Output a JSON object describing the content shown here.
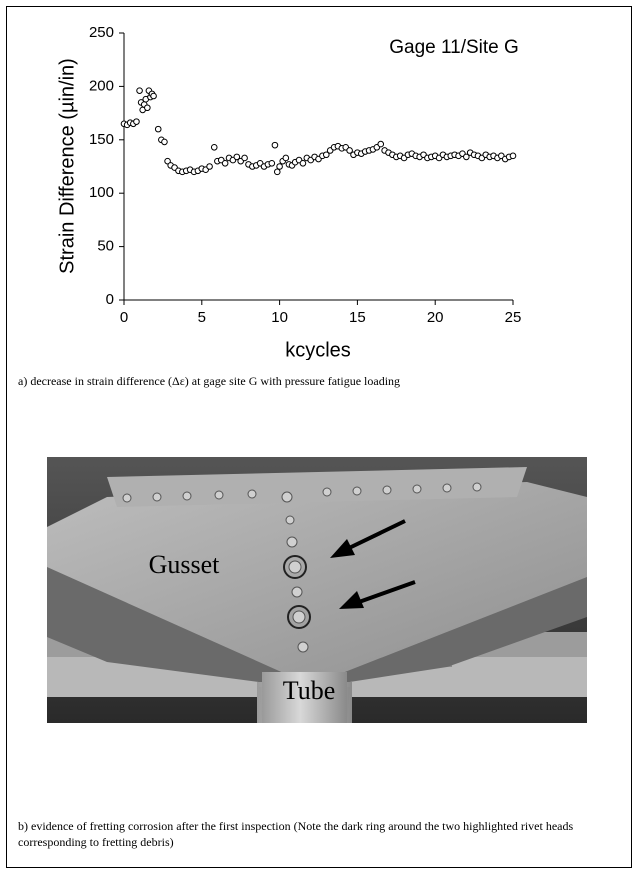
{
  "chart_data": {
    "type": "scatter",
    "annotation": "Gage 11/Site G",
    "x_label": "kcycles",
    "y_label": "Strain Difference (µin/in)",
    "xlim": [
      0,
      25
    ],
    "ylim": [
      0,
      250
    ],
    "xticks": [
      0,
      5,
      10,
      15,
      20,
      25
    ],
    "yticks": [
      0,
      50,
      100,
      150,
      200,
      250
    ],
    "color": "#000000",
    "x": [
      0,
      0.2,
      0.4,
      0.6,
      0.8,
      1.0,
      1.1,
      1.2,
      1.3,
      1.4,
      1.5,
      1.6,
      1.7,
      1.8,
      1.9,
      2.2,
      2.4,
      2.6,
      2.8,
      3.0,
      3.25,
      3.5,
      3.75,
      4.0,
      4.25,
      4.5,
      4.75,
      5.0,
      5.25,
      5.5,
      5.8,
      6.0,
      6.25,
      6.5,
      6.75,
      7.0,
      7.25,
      7.5,
      7.75,
      8.0,
      8.25,
      8.5,
      8.75,
      9.0,
      9.25,
      9.5,
      9.7,
      9.85,
      10.0,
      10.2,
      10.4,
      10.6,
      10.8,
      11.0,
      11.25,
      11.5,
      11.75,
      12.0,
      12.25,
      12.5,
      12.75,
      13.0,
      13.25,
      13.5,
      13.75,
      14.0,
      14.25,
      14.5,
      14.75,
      15.0,
      15.25,
      15.5,
      15.75,
      16.0,
      16.25,
      16.5,
      16.75,
      17.0,
      17.25,
      17.5,
      17.75,
      18.0,
      18.25,
      18.5,
      18.75,
      19.0,
      19.25,
      19.5,
      19.75,
      20.0,
      20.25,
      20.5,
      20.75,
      21.0,
      21.25,
      21.5,
      21.75,
      22.0,
      22.25,
      22.5,
      22.75,
      23.0,
      23.25,
      23.5,
      23.75,
      24.0,
      24.25,
      24.5,
      24.75,
      25.0
    ],
    "values": [
      165,
      164,
      166,
      165,
      167,
      196,
      185,
      178,
      183,
      188,
      180,
      196,
      190,
      193,
      191,
      160,
      150,
      148,
      130,
      126,
      124,
      121,
      120,
      121,
      122,
      120,
      121,
      123,
      122,
      125,
      143,
      130,
      131,
      128,
      133,
      131,
      134,
      130,
      133,
      127,
      125,
      126,
      128,
      125,
      127,
      128,
      145,
      120,
      125,
      130,
      133,
      127,
      126,
      129,
      131,
      128,
      133,
      131,
      134,
      132,
      135,
      136,
      140,
      143,
      144,
      142,
      143,
      140,
      136,
      138,
      137,
      139,
      140,
      141,
      143,
      146,
      140,
      138,
      136,
      134,
      135,
      133,
      136,
      137,
      135,
      134,
      136,
      133,
      134,
      135,
      133,
      136,
      134,
      135,
      136,
      135,
      137,
      134,
      138,
      136,
      135,
      133,
      136,
      134,
      135,
      133,
      135,
      132,
      134,
      135
    ]
  },
  "captions": {
    "a": "a) decrease in strain difference (Δε) at gage site G with pressure fatigue loading",
    "b": "b)  evidence of fretting corrosion after the first inspection (Note the dark ring around the two highlighted rivet heads corresponding to fretting debris)"
  },
  "photo": {
    "labels": [
      "Gusset",
      "Tube"
    ]
  }
}
